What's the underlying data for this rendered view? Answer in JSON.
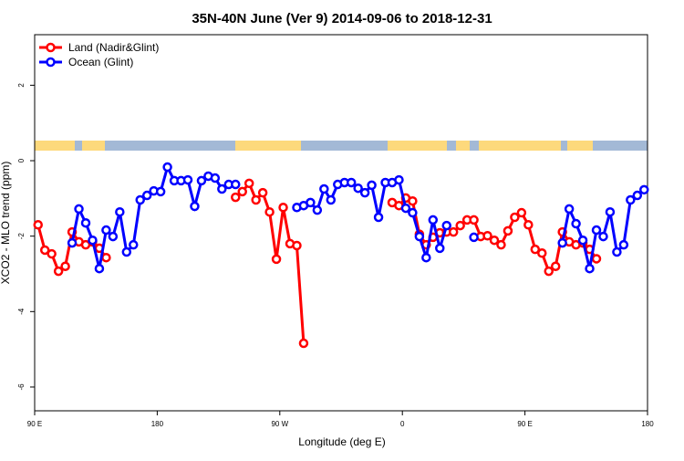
{
  "chart_data": {
    "type": "line",
    "title": "35N-40N June (Ver 9)   2014-09-06 to 2018-12-31",
    "x_label": "Longitude (deg E)",
    "y_label": "XCO2 - MLO trend (ppm)",
    "xlim": [
      90,
      540
    ],
    "ylim": [
      -6.63,
      3.34
    ],
    "xticks": [
      {
        "value": 90,
        "label": "90 E"
      },
      180,
      {
        "value": 270,
        "label": "90 W"
      },
      {
        "value": 360,
        "label": "0"
      },
      {
        "value": 450,
        "label": "90 E"
      },
      {
        "value": 540,
        "label": "180"
      }
    ],
    "yticks": [
      -6,
      -4,
      -2,
      0,
      2
    ],
    "legend": "topleft",
    "series": [
      {
        "name": "Land (Nadir&Glint)",
        "color": "#ff0000",
        "x": [
          92.5,
          97.5,
          102.5,
          107.5,
          112.5,
          117.5,
          122.5,
          127.5,
          132.5,
          137.5,
          142.5,
          190,
          237.5,
          242.5,
          247.5,
          252.5,
          257.5,
          262.5,
          267.5,
          272.5,
          277.5,
          282.5,
          287.5,
          320,
          352.5,
          357.5,
          362.5,
          367.5,
          372.5,
          377.5,
          382.5,
          387.5,
          392.5,
          397.5,
          402.5,
          407.5,
          412.5,
          417.5,
          422.5,
          427.5,
          432.5,
          437.5,
          442.5,
          447.5,
          452.5,
          457.5,
          462.5,
          467.5,
          472.5,
          477.5,
          482.5,
          487.5,
          492.5,
          497.5,
          502.5
        ],
        "values": [
          -1.7,
          -2.37,
          -2.47,
          -2.93,
          -2.8,
          -1.89,
          -2.15,
          -2.23,
          -2.15,
          -2.32,
          -2.57,
          null,
          -0.97,
          -0.82,
          -0.6,
          -1.04,
          -0.85,
          -1.36,
          -2.61,
          -1.24,
          -2.2,
          -2.25,
          -4.84,
          null,
          -1.11,
          -1.19,
          -0.99,
          -1.07,
          -1.95,
          -2.23,
          -2.03,
          -1.91,
          -1.89,
          -1.89,
          -1.72,
          -1.57,
          -1.57,
          -2.01,
          -1.99,
          -2.11,
          -2.23,
          -1.86,
          -1.5,
          -1.38,
          -1.7,
          -2.35,
          -2.45,
          -2.93,
          -2.8,
          -1.89,
          -2.15,
          -2.23,
          -2.18,
          -2.35,
          -2.6
        ]
      },
      {
        "name": "Ocean (Glint)",
        "color": "#0000ff",
        "x": [
          117.5,
          122.5,
          127.5,
          132.5,
          137.5,
          142.5,
          147.5,
          152.5,
          157.5,
          162.5,
          167.5,
          172.5,
          177.5,
          182.5,
          187.5,
          192.5,
          197.5,
          202.5,
          207.5,
          212.5,
          217.5,
          222.5,
          227.5,
          232.5,
          237.5,
          260,
          282.5,
          287.5,
          292.5,
          297.5,
          302.5,
          307.5,
          312.5,
          317.5,
          322.5,
          327.5,
          332.5,
          337.5,
          342.5,
          347.5,
          352.5,
          357.5,
          362.5,
          367.5,
          372.5,
          377.5,
          382.5,
          387.5,
          392.5,
          402.5,
          412.5,
          445,
          477.5,
          482.5,
          487.5,
          492.5,
          497.5,
          502.5,
          507.5,
          512.5,
          517.5,
          522.5,
          527.5,
          532.5,
          537.5
        ],
        "values": [
          -2.18,
          -1.28,
          -1.65,
          -2.11,
          -2.86,
          -1.84,
          -2.01,
          -1.36,
          -2.42,
          -2.23,
          -1.04,
          -0.92,
          -0.8,
          -0.82,
          -0.17,
          -0.53,
          -0.53,
          -0.51,
          -1.21,
          -0.53,
          -0.41,
          -0.46,
          -0.75,
          -0.63,
          -0.63,
          null,
          -1.24,
          -1.19,
          -1.11,
          -1.31,
          -0.75,
          -1.04,
          -0.63,
          -0.58,
          -0.58,
          -0.73,
          -0.85,
          -0.65,
          -1.5,
          -0.58,
          -0.58,
          -0.51,
          -1.26,
          -1.38,
          -2.01,
          -2.57,
          -1.57,
          -2.32,
          -1.72,
          null,
          -2.03,
          null,
          -2.18,
          -1.28,
          -1.67,
          -2.11,
          -2.86,
          -1.84,
          -2.01,
          -1.36,
          -2.42,
          -2.23,
          -1.04,
          -0.92,
          -0.77
        ]
      }
    ]
  }
}
